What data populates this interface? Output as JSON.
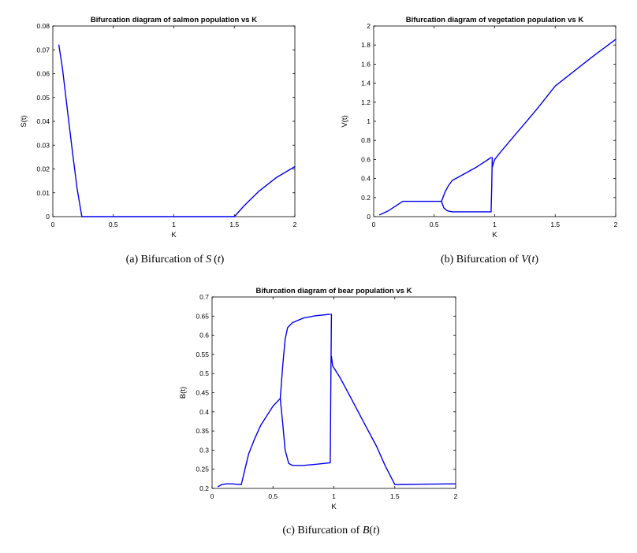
{
  "figure": {
    "captions": [
      {
        "prefix": "(a)  Bifurcation of ",
        "var": "S",
        "suffix": "(",
        "arg": "t",
        "close": ")"
      },
      {
        "prefix": "(b)  Bifurcation of ",
        "var": "V",
        "suffix": "(",
        "arg": "t",
        "close": ")"
      },
      {
        "prefix": "(c)  Bifurcation of ",
        "var": "B",
        "suffix": "(",
        "arg": "t",
        "close": ")"
      }
    ]
  },
  "chart_data": [
    {
      "type": "line",
      "title": "Bifurcation diagram of salmon population vs K",
      "xlabel": "K",
      "ylabel": "S(t)",
      "xlim": [
        0,
        2
      ],
      "ylim": [
        0,
        0.08
      ],
      "xticks": [
        "0",
        "0.5",
        "1",
        "1.5",
        "2"
      ],
      "yticks": [
        "0",
        "0.01",
        "0.02",
        "0.03",
        "0.04",
        "0.05",
        "0.06",
        "0.07",
        "0.08"
      ],
      "line_color": "#0000ee",
      "series": [
        {
          "points": [
            [
              0.05,
              0.072
            ],
            [
              0.08,
              0.062
            ],
            [
              0.12,
              0.045
            ],
            [
              0.16,
              0.028
            ],
            [
              0.2,
              0.012
            ],
            [
              0.24,
              0
            ],
            [
              0.6,
              0
            ],
            [
              1.0,
              0
            ],
            [
              1.5,
              0
            ],
            [
              1.58,
              0.0045
            ],
            [
              1.7,
              0.0105
            ],
            [
              1.85,
              0.0165
            ],
            [
              2.0,
              0.021
            ]
          ]
        }
      ]
    },
    {
      "type": "line",
      "title": "Bifurcation diagram of vegetation population vs K",
      "xlabel": "K",
      "ylabel": "V(t)",
      "xlim": [
        0,
        2
      ],
      "ylim": [
        0,
        2
      ],
      "xticks": [
        "0",
        "0.5",
        "1",
        "1.5",
        "2"
      ],
      "yticks": [
        "0",
        "0.2",
        "0.4",
        "0.6",
        "0.8",
        "1",
        "1.2",
        "1.4",
        "1.6",
        "1.8",
        "2"
      ],
      "line_color": "#0000ee",
      "series": [
        {
          "points": [
            [
              0.05,
              0.02
            ],
            [
              0.12,
              0.06
            ],
            [
              0.18,
              0.11
            ],
            [
              0.24,
              0.16
            ],
            [
              0.4,
              0.16
            ],
            [
              0.56,
              0.16
            ]
          ]
        },
        {
          "points": [
            [
              0.56,
              0.16
            ],
            [
              0.59,
              0.26
            ],
            [
              0.62,
              0.33
            ],
            [
              0.65,
              0.38
            ],
            [
              0.75,
              0.45
            ],
            [
              0.85,
              0.52
            ],
            [
              0.97,
              0.62
            ]
          ]
        },
        {
          "points": [
            [
              0.56,
              0.16
            ],
            [
              0.58,
              0.09
            ],
            [
              0.61,
              0.06
            ],
            [
              0.65,
              0.05
            ],
            [
              0.8,
              0.05
            ],
            [
              0.97,
              0.05
            ]
          ]
        },
        {
          "points": [
            [
              0.97,
              0.05
            ],
            [
              0.975,
              0.3
            ],
            [
              0.98,
              0.62
            ]
          ]
        },
        {
          "points": [
            [
              0.98,
              0.52
            ],
            [
              1.0,
              0.6
            ],
            [
              1.05,
              0.68
            ],
            [
              1.15,
              0.83
            ],
            [
              1.25,
              0.98
            ],
            [
              1.35,
              1.13
            ],
            [
              1.5,
              1.37
            ],
            [
              1.65,
              1.52
            ],
            [
              1.8,
              1.67
            ],
            [
              2.0,
              1.86
            ]
          ]
        }
      ]
    },
    {
      "type": "line",
      "title": "Bifurcation diagram of bear population vs K",
      "xlabel": "K",
      "ylabel": "B(t)",
      "xlim": [
        0,
        2
      ],
      "ylim": [
        0.2,
        0.7
      ],
      "xticks": [
        "0",
        "0.5",
        "1",
        "1.5",
        "2"
      ],
      "yticks": [
        "0.2",
        "0.25",
        "0.3",
        "0.35",
        "0.4",
        "0.45",
        "0.5",
        "0.55",
        "0.6",
        "0.65",
        "0.7"
      ],
      "line_color": "#0000ee",
      "series": [
        {
          "points": [
            [
              0.05,
              0.205
            ],
            [
              0.08,
              0.21
            ],
            [
              0.12,
              0.212
            ],
            [
              0.16,
              0.212
            ],
            [
              0.2,
              0.211
            ],
            [
              0.24,
              0.21
            ]
          ]
        },
        {
          "points": [
            [
              0.24,
              0.21
            ],
            [
              0.27,
              0.25
            ],
            [
              0.3,
              0.29
            ],
            [
              0.35,
              0.33
            ],
            [
              0.4,
              0.365
            ],
            [
              0.45,
              0.39
            ],
            [
              0.5,
              0.415
            ],
            [
              0.56,
              0.435
            ]
          ]
        },
        {
          "points": [
            [
              0.56,
              0.435
            ],
            [
              0.58,
              0.52
            ],
            [
              0.6,
              0.59
            ],
            [
              0.62,
              0.62
            ],
            [
              0.66,
              0.633
            ],
            [
              0.75,
              0.645
            ],
            [
              0.85,
              0.651
            ],
            [
              0.97,
              0.655
            ]
          ]
        },
        {
          "points": [
            [
              0.56,
              0.435
            ],
            [
              0.58,
              0.37
            ],
            [
              0.6,
              0.3
            ],
            [
              0.63,
              0.265
            ],
            [
              0.66,
              0.26
            ],
            [
              0.75,
              0.26
            ],
            [
              0.85,
              0.263
            ],
            [
              0.97,
              0.267
            ]
          ]
        },
        {
          "points": [
            [
              0.97,
              0.267
            ],
            [
              0.975,
              0.46
            ],
            [
              0.98,
              0.655
            ]
          ]
        },
        {
          "points": [
            [
              0.98,
              0.545
            ],
            [
              0.99,
              0.52
            ],
            [
              1.05,
              0.49
            ],
            [
              1.15,
              0.43
            ],
            [
              1.25,
              0.37
            ],
            [
              1.35,
              0.31
            ],
            [
              1.42,
              0.26
            ],
            [
              1.5,
              0.21
            ],
            [
              1.7,
              0.211
            ],
            [
              2.0,
              0.212
            ]
          ]
        }
      ]
    }
  ]
}
